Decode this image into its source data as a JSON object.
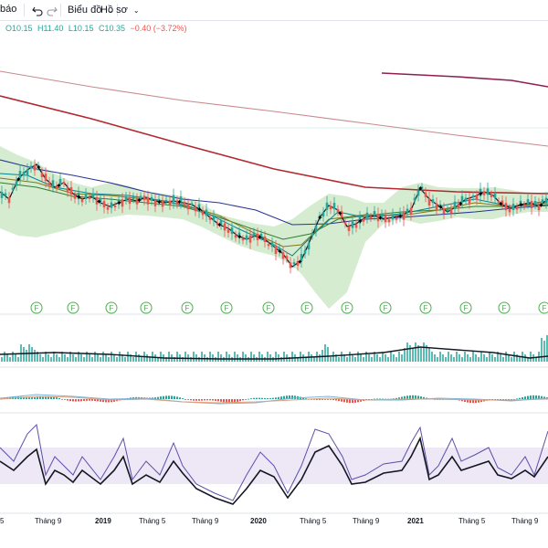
{
  "toolbar": {
    "partial_label": "báo",
    "undo_icon": "undo-icon",
    "redo_icon": "redo-icon",
    "chart_menu": "Biểu đồ",
    "profile_menu": "Hồ sơ",
    "dropdown_icon": "chevron-down-icon"
  },
  "ohlc": {
    "open": "O10.15",
    "high": "H11.40",
    "low": "L10.15",
    "close": "C10.35",
    "change": "−0.40 (−3.72%)"
  },
  "colors": {
    "up": "#26a69a",
    "down": "#ef5350",
    "ma_long": "#b2282e",
    "ma_long2": "#c98a8e",
    "bands": "#c8e6c0",
    "rsi_band": "#ede7f6",
    "stoch_k": "#131722",
    "stoch_d": "#5c50a8"
  },
  "events": {
    "marker_label": "F",
    "count": 14
  },
  "x_axis": {
    "labels": [
      {
        "text": "5",
        "bold": false
      },
      {
        "text": "Tháng 9",
        "bold": false
      },
      {
        "text": "2019",
        "bold": true
      },
      {
        "text": "Tháng 5",
        "bold": false
      },
      {
        "text": "Tháng 9",
        "bold": false
      },
      {
        "text": "2020",
        "bold": true
      },
      {
        "text": "Tháng 5",
        "bold": false
      },
      {
        "text": "Tháng 9",
        "bold": false
      },
      {
        "text": "2021",
        "bold": true
      },
      {
        "text": "Tháng 5",
        "bold": false
      },
      {
        "text": "Tháng 9",
        "bold": false
      }
    ]
  }
}
